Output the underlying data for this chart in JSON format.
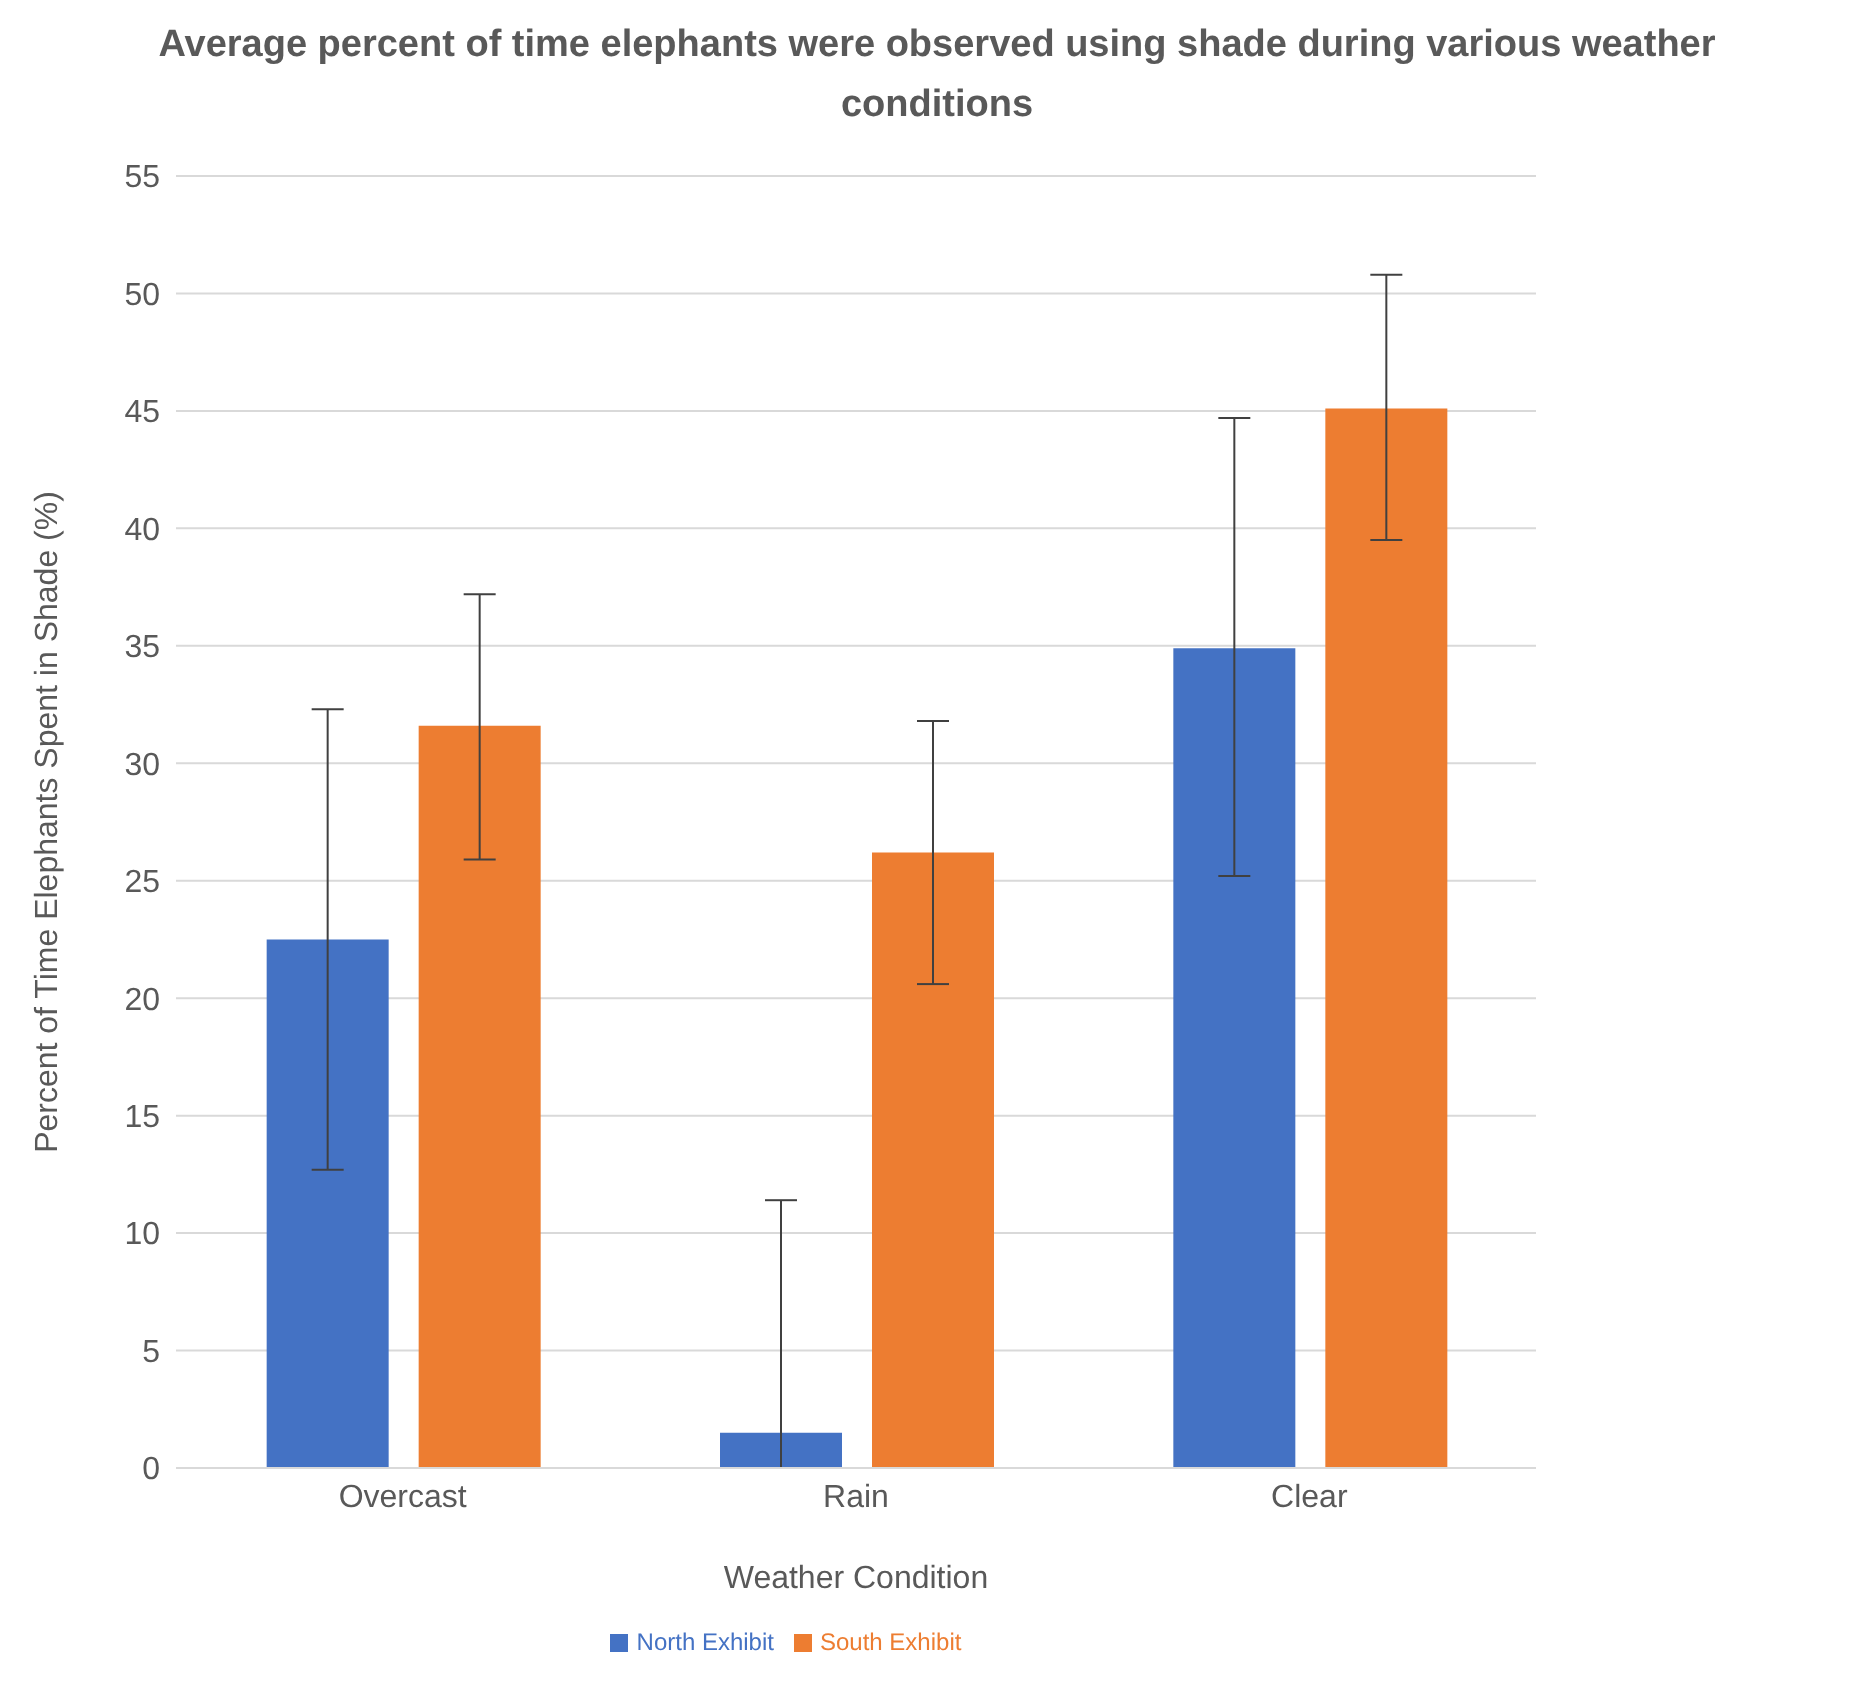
{
  "chart_data": {
    "type": "bar",
    "title": "Average percent of time elephants were observed using shade during various weather conditions",
    "xlabel": "Weather Condition",
    "ylabel": "Percent of Time Elephants Spent in Shade (%)",
    "categories": [
      "Overcast",
      "Rain",
      "Clear"
    ],
    "series": [
      {
        "name": "North Exhibit",
        "color": "#4472c4",
        "values": [
          22.5,
          1.5,
          34.9
        ],
        "errors": [
          [
            12.7,
            32.3
          ],
          [
            0,
            11.4
          ],
          [
            25.2,
            44.7
          ]
        ]
      },
      {
        "name": "South Exhibit",
        "color": "#ed7d31",
        "values": [
          31.6,
          26.2,
          45.1
        ],
        "errors": [
          [
            25.9,
            37.2
          ],
          [
            20.6,
            31.8
          ],
          [
            39.5,
            50.8
          ]
        ]
      }
    ],
    "ylim": [
      0,
      55
    ],
    "yticks": [
      0,
      5,
      10,
      15,
      20,
      25,
      30,
      35,
      40,
      45,
      50,
      55
    ],
    "grid": "y",
    "legend": "bottom"
  }
}
